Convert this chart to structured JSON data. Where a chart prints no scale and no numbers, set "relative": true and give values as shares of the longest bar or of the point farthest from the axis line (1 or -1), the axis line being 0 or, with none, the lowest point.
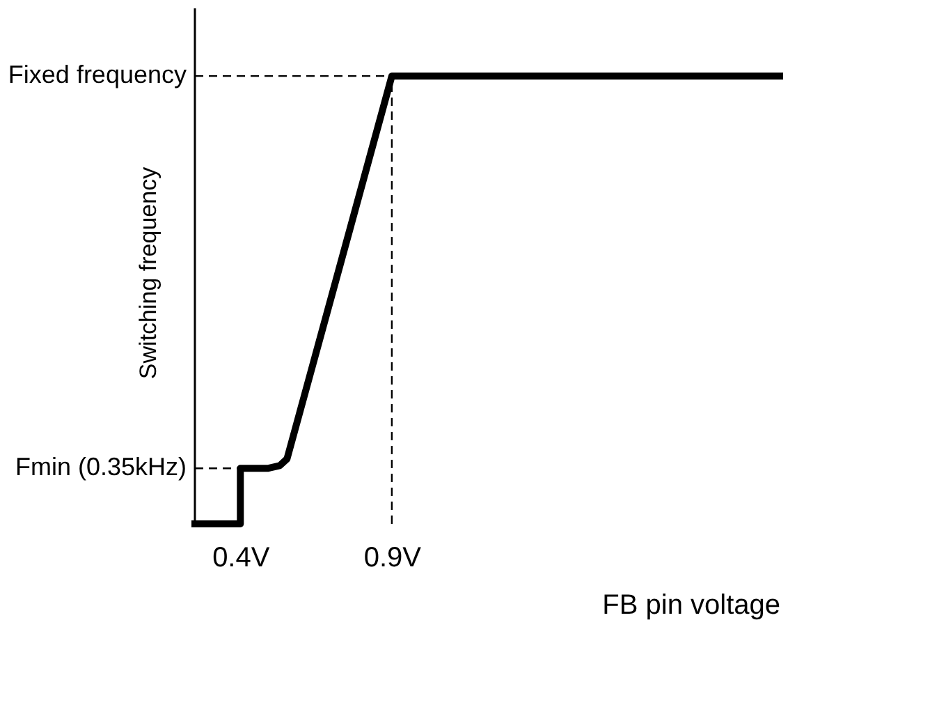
{
  "chart_data": {
    "type": "line",
    "relative": true,
    "ylabel": "Switching frequency",
    "xlabel": "FB pin voltage",
    "xlim": [
      0.25,
      2.18
    ],
    "xticks": [
      {
        "value": 0.4,
        "label": "0.4V"
      },
      {
        "value": 0.9,
        "label": "0.9V"
      }
    ],
    "grid": false,
    "marker": "none",
    "line_style": "solid",
    "series": [
      {
        "color": "#000000",
        "x": [
          0.25,
          0.4,
          0.4,
          0.49,
          0.53,
          0.554,
          0.9,
          2.18
        ],
        "values": [
          0,
          0,
          0.124,
          0.124,
          0.13,
          0.145,
          1,
          1
        ]
      }
    ],
    "ref_lines": [
      {
        "axis": "y",
        "value": 0.124,
        "label": "Fmin (0.35kHz)",
        "line_style": "dashed"
      },
      {
        "axis": "y",
        "value": 1,
        "label": "Fixed frequency",
        "line_style": "dashed"
      },
      {
        "axis": "x",
        "value": 0.9,
        "line_style": "dashed"
      }
    ]
  }
}
